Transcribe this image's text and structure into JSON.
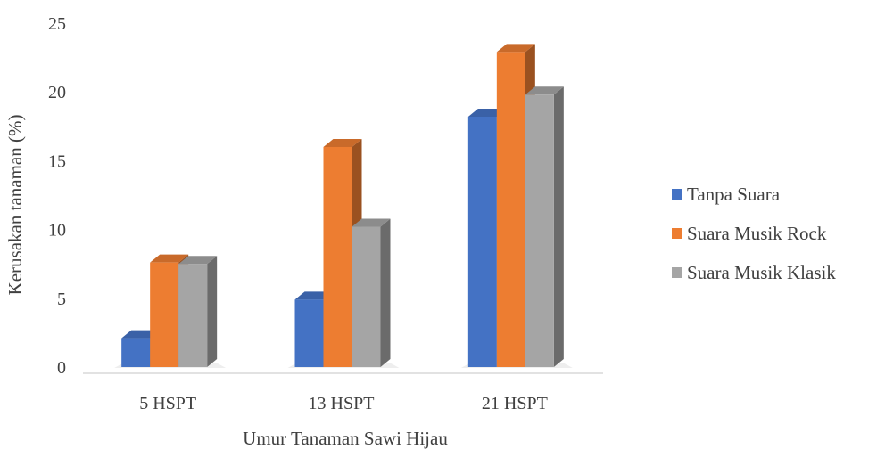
{
  "chart_data": {
    "type": "bar",
    "categories": [
      "5 HSPT",
      "13 HSPT",
      "21 HSPT"
    ],
    "series": [
      {
        "name": "Tanpa Suara",
        "values": [
          2.1,
          4.9,
          18.2
        ],
        "color": "#4472C4"
      },
      {
        "name": "Suara Musik Rock",
        "values": [
          7.6,
          16.0,
          22.9
        ],
        "color": "#ED7D31"
      },
      {
        "name": "Suara Musik Klasik",
        "values": [
          7.5,
          10.2,
          19.8
        ],
        "color": "#A5A5A5"
      }
    ],
    "xlabel": "Umur Tanaman Sawi Hijau",
    "ylabel": "Kerusakan tanaman (%)",
    "ylim": [
      0,
      25
    ],
    "yticks": [
      "0",
      "5",
      "10",
      "15",
      "20",
      "25"
    ],
    "legend_position": "right",
    "grid": false
  }
}
